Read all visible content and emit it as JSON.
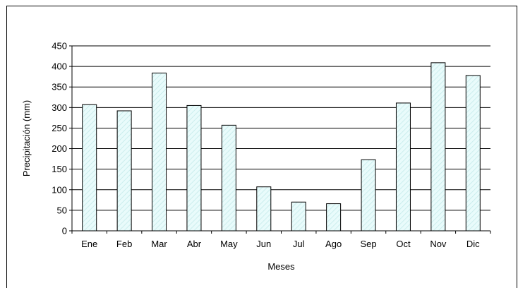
{
  "chart_data": {
    "type": "bar",
    "xlabel": "Meses",
    "ylabel": "Precipitación (mm)",
    "categories": [
      "Ene",
      "Feb",
      "Mar",
      "Abr",
      "May",
      "Jun",
      "Jul",
      "Ago",
      "Sep",
      "Oct",
      "Nov",
      "Dic"
    ],
    "values": [
      307,
      292,
      384,
      305,
      257,
      107,
      70,
      66,
      173,
      311,
      409,
      378
    ],
    "ylim": [
      0,
      450
    ],
    "yticks": [
      "0",
      "50",
      "100",
      "150",
      "200",
      "250",
      "300",
      "350",
      "400",
      "450"
    ],
    "grid": true,
    "legend": "none",
    "bar_fill": "#e9fbfb",
    "bar_hatch": "#bfe8e8",
    "bar_stroke": "#000000"
  }
}
